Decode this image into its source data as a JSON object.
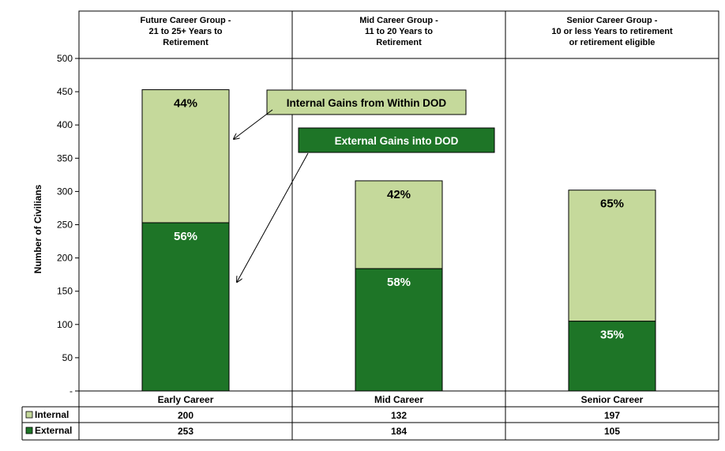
{
  "chart_data": {
    "type": "bar",
    "stacked": true,
    "ylabel": "Number of Civilians",
    "ylim": [
      0,
      500
    ],
    "yticks": [
      "-",
      "50",
      "100",
      "150",
      "200",
      "250",
      "300",
      "350",
      "400",
      "450",
      "500"
    ],
    "grid": false,
    "groups": [
      {
        "lines": [
          "Future Career Group -",
          "21 to 25+ Years to",
          "Retirement"
        ]
      },
      {
        "lines": [
          "Mid Career Group -",
          "11 to 20 Years to",
          "Retirement"
        ]
      },
      {
        "lines": [
          "Senior Career Group -",
          "10 or less Years to retirement",
          "or retirement eligible"
        ]
      }
    ],
    "categories": [
      "Early Career",
      "Mid Career",
      "Senior Career"
    ],
    "series": [
      {
        "name": "External",
        "values": [
          253,
          184,
          105
        ],
        "pct_labels": [
          "56%",
          "58%",
          "35%"
        ],
        "color": "#1e7527"
      },
      {
        "name": "Internal",
        "values": [
          200,
          132,
          197
        ],
        "pct_labels": [
          "44%",
          "42%",
          "65%"
        ],
        "color": "#c5d99b"
      }
    ],
    "table": {
      "rows": [
        {
          "legend": "Internal",
          "cells": [
            "200",
            "132",
            "197"
          ],
          "color": "#c5d99b"
        },
        {
          "legend": "External",
          "cells": [
            "253",
            "184",
            "105"
          ],
          "color": "#1e7527"
        }
      ]
    },
    "annotations": {
      "internal": "Internal Gains from Within DOD",
      "external": "External Gains into DOD"
    }
  }
}
